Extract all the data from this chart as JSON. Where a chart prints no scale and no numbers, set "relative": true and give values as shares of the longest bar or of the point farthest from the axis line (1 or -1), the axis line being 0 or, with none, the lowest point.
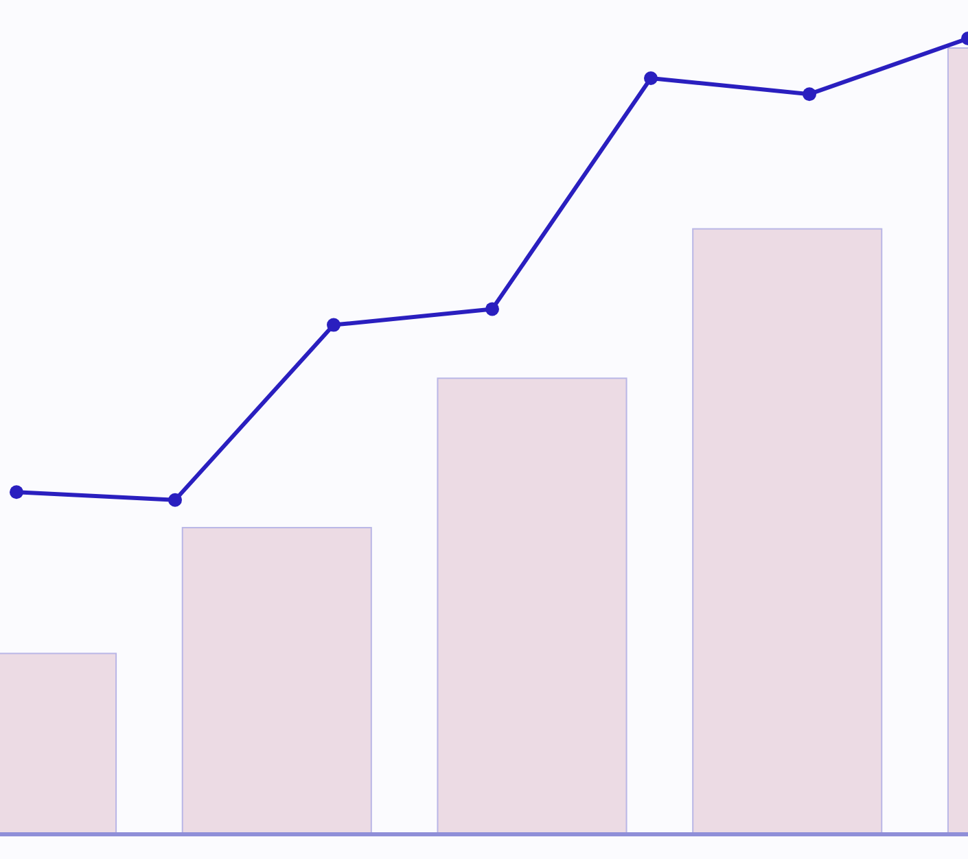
{
  "chart_data": [
    {
      "type": "bar",
      "relative": true,
      "categories": [
        null,
        null,
        null,
        null,
        null
      ],
      "color": "#ecdbe4",
      "values": [
        0.23,
        0.39,
        0.58,
        0.77,
        1
      ]
    },
    {
      "type": "line",
      "relative": true,
      "marker": "circle",
      "categories": [
        null,
        null,
        null,
        null,
        null,
        null,
        null
      ],
      "color": "#2a1fbf",
      "values": [
        0.43,
        0.42,
        0.64,
        0.66,
        0.95,
        0.93,
        1
      ]
    }
  ]
}
